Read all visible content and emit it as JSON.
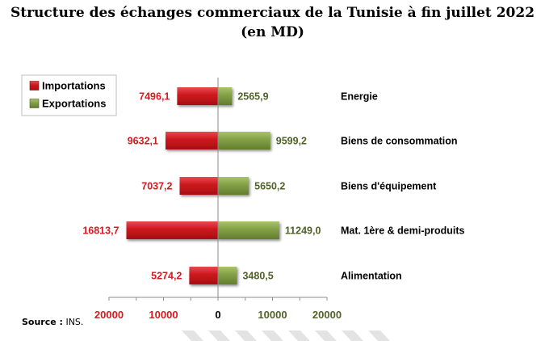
{
  "chart_data": {
    "type": "bar",
    "orientation": "horizontal-diverging",
    "title": "Structure des échanges commerciaux de la Tunisie à fin juillet 2022",
    "subtitle": "(en MD)",
    "categories": [
      "Energie",
      "Biens de consommation",
      "Biens d'équipement",
      "Mat. 1ère & demi-produits",
      "Alimentation"
    ],
    "series": [
      {
        "name": "Importations",
        "color": "#d71920",
        "values": [
          7496.1,
          9632.1,
          7037.2,
          16813.7,
          5274.2
        ],
        "labels": [
          "7496,1",
          "9632,1",
          "7037,2",
          "16813,7",
          "5274,2"
        ]
      },
      {
        "name": "Exportations",
        "color": "#77933c",
        "values": [
          2565.9,
          9599.2,
          5650.2,
          11249.0,
          3480.5
        ],
        "labels": [
          "2565,9",
          "9599,2",
          "5650,2",
          "11249,0",
          "3480,5"
        ]
      }
    ],
    "xlim": [
      -20000,
      20000
    ],
    "xticks": [
      "20000",
      "10000",
      "0",
      "10000",
      "20000"
    ],
    "xtick_values": [
      -20000,
      -10000,
      0,
      10000,
      20000
    ],
    "grid": false,
    "legend_position": "top-left"
  },
  "source": {
    "label": "Source :",
    "value": "INS."
  }
}
